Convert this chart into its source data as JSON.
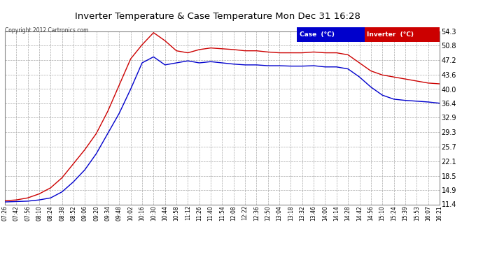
{
  "title": "Inverter Temperature & Case Temperature Mon Dec 31 16:28",
  "copyright": "Copyright 2012 Cartronics.com",
  "bg_color": "#ffffff",
  "plot_bg_color": "#ffffff",
  "grid_color": "#aaaaaa",
  "ylim": [
    11.4,
    54.3
  ],
  "yticks": [
    11.4,
    14.9,
    18.5,
    22.1,
    25.7,
    29.3,
    32.9,
    36.4,
    40.0,
    43.6,
    47.2,
    50.8,
    54.3
  ],
  "xtick_labels": [
    "07:26",
    "07:42",
    "07:56",
    "08:10",
    "08:24",
    "08:38",
    "08:52",
    "09:06",
    "09:20",
    "09:34",
    "09:48",
    "10:02",
    "10:16",
    "10:30",
    "10:44",
    "10:58",
    "11:12",
    "11:26",
    "11:40",
    "11:54",
    "12:08",
    "12:22",
    "12:36",
    "12:50",
    "13:04",
    "13:18",
    "13:32",
    "13:46",
    "14:00",
    "14:14",
    "14:28",
    "14:42",
    "14:56",
    "15:10",
    "15:24",
    "15:39",
    "15:53",
    "16:07",
    "16:21"
  ],
  "case_color": "#0000cc",
  "inverter_color": "#cc0000",
  "legend_case_bg": "#0000cc",
  "legend_inverter_bg": "#cc0000",
  "case_data": [
    12.0,
    12.1,
    12.2,
    12.5,
    13.0,
    14.5,
    17.0,
    20.0,
    24.0,
    29.0,
    34.0,
    40.0,
    46.5,
    48.0,
    46.0,
    46.5,
    47.0,
    46.5,
    46.8,
    46.5,
    46.2,
    46.0,
    46.0,
    45.8,
    45.8,
    45.7,
    45.7,
    45.8,
    45.5,
    45.5,
    45.0,
    43.0,
    40.5,
    38.5,
    37.5,
    37.2,
    37.0,
    36.8,
    36.5
  ],
  "inverter_data": [
    12.3,
    12.5,
    13.0,
    14.0,
    15.5,
    18.0,
    21.5,
    25.0,
    29.0,
    34.5,
    41.0,
    47.5,
    51.0,
    54.0,
    52.0,
    49.5,
    49.0,
    49.8,
    50.2,
    50.0,
    49.8,
    49.5,
    49.5,
    49.2,
    49.0,
    49.0,
    49.0,
    49.2,
    49.0,
    49.0,
    48.5,
    46.5,
    44.5,
    43.5,
    43.0,
    42.5,
    42.0,
    41.5,
    41.3
  ]
}
